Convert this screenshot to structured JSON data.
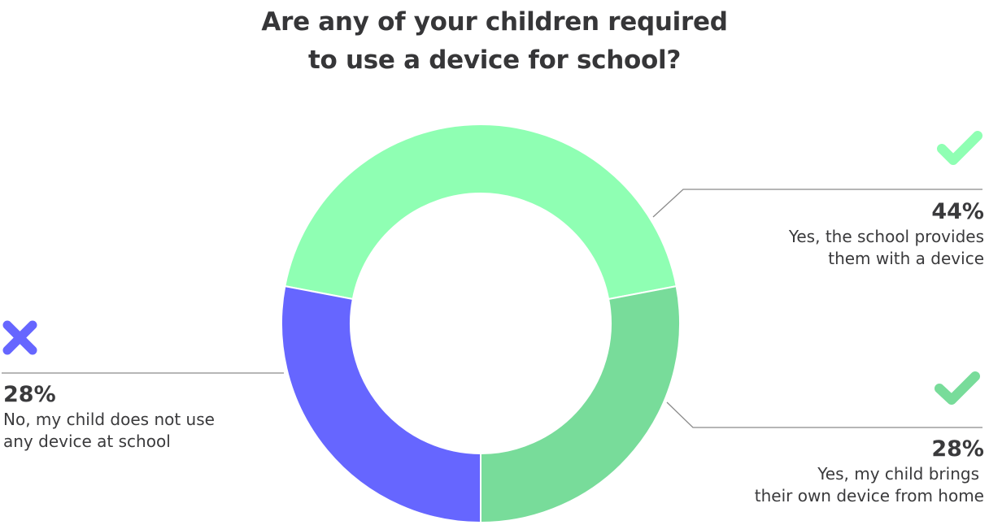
{
  "title": {
    "line1": "Are any of your children required",
    "line2": "to use a device for school?"
  },
  "colors": {
    "school_provides": "#8fffb3",
    "brings_own": "#78dc9a",
    "no_device": "#6666ff",
    "leader_line": "#8a8a8a",
    "text": "#3a3a3c"
  },
  "labels": {
    "school_provides": {
      "percent": "44%",
      "line1": "Yes, the school provides",
      "line2": "them with a device",
      "icon": "checkmark-icon"
    },
    "brings_own": {
      "percent": "28%",
      "line1": "Yes, my child brings",
      "line2": "their own device from home",
      "icon": "checkmark-icon"
    },
    "no_device": {
      "percent": "28%",
      "line1": "No, my child does not use",
      "line2": "any device at school",
      "icon": "x-icon"
    }
  },
  "chart_data": {
    "type": "pie",
    "subtype": "donut",
    "title": "Are any of your children required to use a device for school?",
    "categories": [
      "Yes, the school provides them with a device",
      "Yes, my child brings their own device from home",
      "No, my child does not use any device at school"
    ],
    "values": [
      44,
      28,
      28
    ],
    "unit": "%",
    "colors": [
      "#8fffb3",
      "#78dc9a",
      "#6666ff"
    ],
    "legend": "none (callout labels with leader lines)",
    "annotations": [
      "checkmark icon for Yes answers",
      "x icon for No answer"
    ]
  }
}
